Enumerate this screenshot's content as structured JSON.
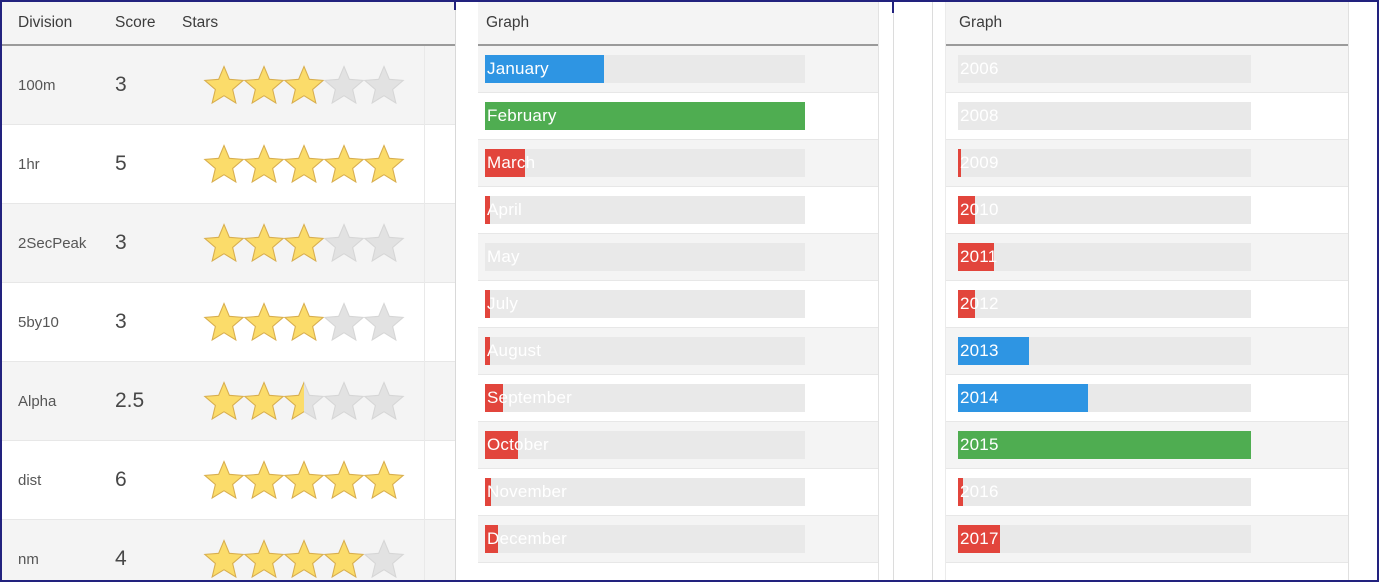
{
  "left_grid": {
    "columns": [
      "Division",
      "Score",
      "Stars"
    ],
    "max_stars": 5,
    "rows": [
      {
        "division": "100m",
        "score": "3",
        "stars": 3
      },
      {
        "division": "1hr",
        "score": "5",
        "stars": 5
      },
      {
        "division": "2SecPeak",
        "score": "3",
        "stars": 3
      },
      {
        "division": "5by10",
        "score": "3",
        "stars": 3
      },
      {
        "division": "Alpha",
        "score": "2.5",
        "stars": 2.5
      },
      {
        "division": "dist",
        "score": "6",
        "stars": 5
      },
      {
        "division": "nm",
        "score": "4",
        "stars": 4
      }
    ]
  },
  "month_graph": {
    "header": "Graph",
    "bars": [
      {
        "label": "January",
        "pct": 37.2,
        "color": "#2e95e3"
      },
      {
        "label": "February",
        "pct": 100,
        "color": "#4fad51"
      },
      {
        "label": "March",
        "pct": 12.5,
        "color": "#e2453c"
      },
      {
        "label": "April",
        "pct": 1.6,
        "color": "#e2453c"
      },
      {
        "label": "May",
        "pct": 0,
        "color": "#e2453c"
      },
      {
        "label": "July",
        "pct": 1.6,
        "color": "#e2453c"
      },
      {
        "label": "August",
        "pct": 1.6,
        "color": "#e2453c"
      },
      {
        "label": "September",
        "pct": 5.6,
        "color": "#e2453c"
      },
      {
        "label": "October",
        "pct": 10.3,
        "color": "#e2453c"
      },
      {
        "label": "November",
        "pct": 1.9,
        "color": "#e2453c"
      },
      {
        "label": "December",
        "pct": 4.1,
        "color": "#e2453c"
      }
    ]
  },
  "year_graph": {
    "header": "Graph",
    "bars": [
      {
        "label": "2006",
        "pct": 0,
        "color": "#e2453c"
      },
      {
        "label": "2008",
        "pct": 0,
        "color": "#e2453c"
      },
      {
        "label": "2009",
        "pct": 1.0,
        "color": "#e2453c"
      },
      {
        "label": "2010",
        "pct": 5.8,
        "color": "#e2453c"
      },
      {
        "label": "2011",
        "pct": 12.3,
        "color": "#e2453c"
      },
      {
        "label": "2012",
        "pct": 5.8,
        "color": "#e2453c"
      },
      {
        "label": "2013",
        "pct": 24.2,
        "color": "#2e95e3"
      },
      {
        "label": "2014",
        "pct": 44.4,
        "color": "#2e95e3"
      },
      {
        "label": "2015",
        "pct": 100,
        "color": "#4fad51"
      },
      {
        "label": "2016",
        "pct": 1.7,
        "color": "#e2453c"
      },
      {
        "label": "2017",
        "pct": 14.3,
        "color": "#e2453c"
      }
    ]
  },
  "colors": {
    "accent_blue": "#2e95e3",
    "accent_green": "#4fad51",
    "accent_red": "#e2453c",
    "track_gray": "#e9e9e9",
    "border_navy": "#22227e",
    "star_fill": "#fbdc6a",
    "star_stroke": "#d8ae4e",
    "star_empty": "#e2e2e2",
    "star_empty_stroke": "#d6d6d6"
  }
}
